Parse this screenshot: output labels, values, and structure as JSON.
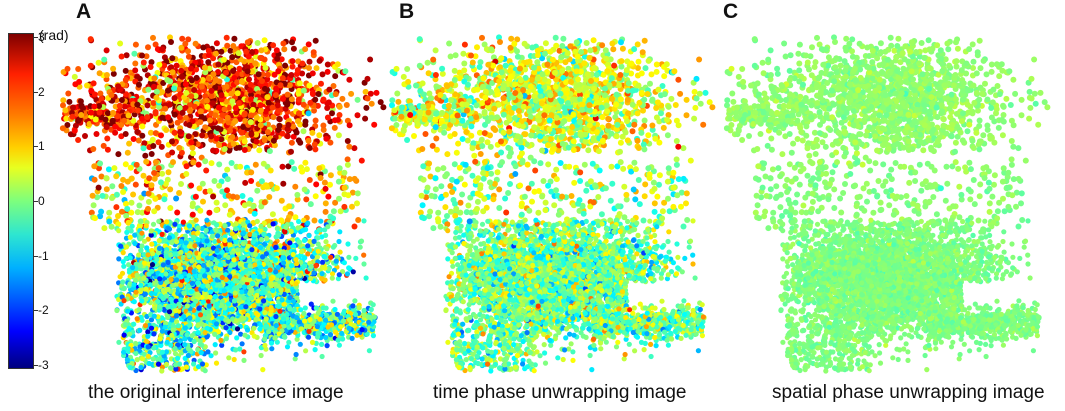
{
  "panels": [
    {
      "letter": "A",
      "caption": "the original interference image"
    },
    {
      "letter": "B",
      "caption": "time phase unwrapping image"
    },
    {
      "letter": "C",
      "caption": "spatial phase unwrapping image"
    }
  ],
  "colorbar": {
    "unit": "(rad)",
    "ticks": [
      "3",
      "2",
      "1",
      "0",
      "-1",
      "-2",
      "-3"
    ],
    "range": [
      -3,
      3
    ]
  },
  "chart_data": {
    "type": "scatter",
    "title": "",
    "xlabel": "",
    "ylabel": "",
    "colormap": "jet",
    "color_range": [
      -3,
      3
    ],
    "color_unit": "(rad)",
    "panels": [
      {
        "name": "A",
        "caption": "the original interference image",
        "upper_region_phase_approx": 2.0,
        "lower_region_phase_approx": -0.3
      },
      {
        "name": "B",
        "caption": "time phase unwrapping image",
        "upper_region_phase_approx": 0.5,
        "lower_region_phase_approx": -0.1
      },
      {
        "name": "C",
        "caption": "spatial phase unwrapping image",
        "upper_region_phase_approx": 0.1,
        "lower_region_phase_approx": 0.0
      }
    ]
  }
}
